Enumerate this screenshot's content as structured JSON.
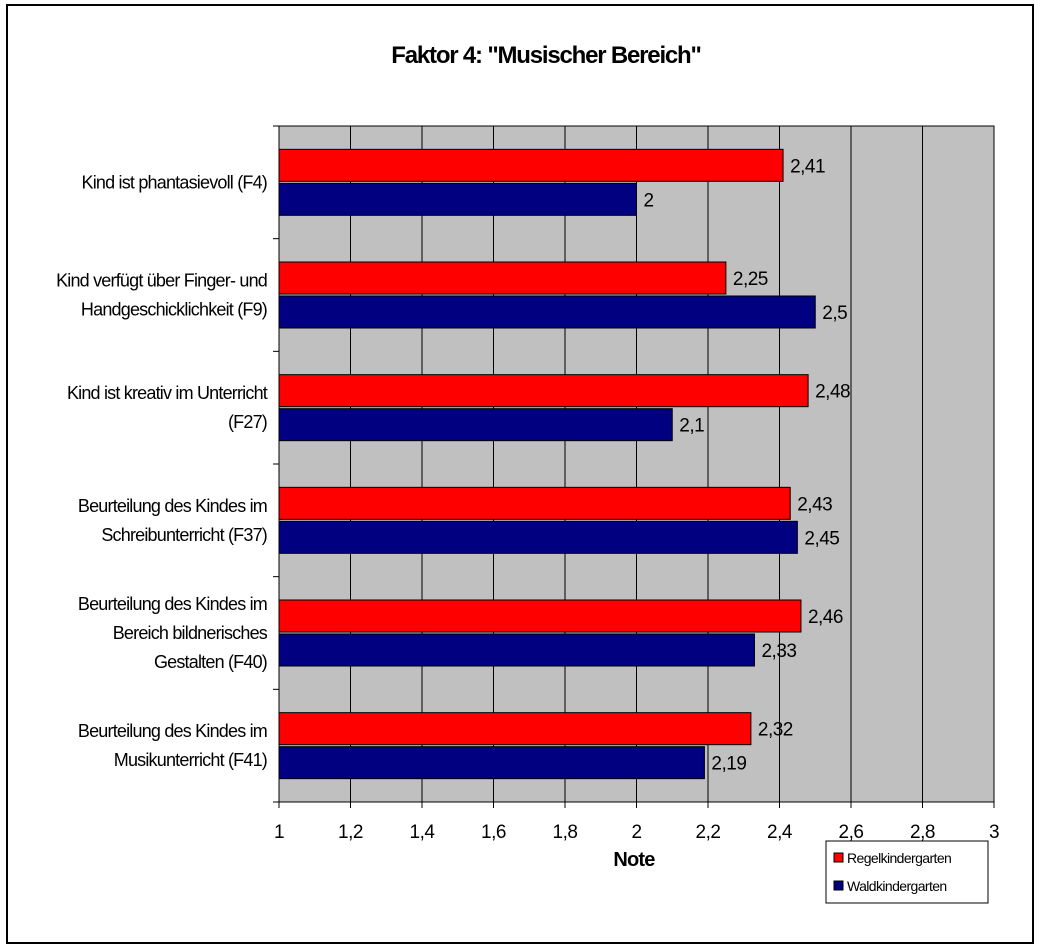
{
  "chart_data": {
    "type": "bar",
    "orientation": "horizontal",
    "title": "Faktor 4: \"Musischer Bereich\"",
    "xlabel": "Note",
    "ylabel": "",
    "xlim": [
      1,
      3
    ],
    "x_ticks": [
      "1",
      "1,2",
      "1,4",
      "1,6",
      "1,8",
      "2",
      "2,2",
      "2,4",
      "2,6",
      "2,8",
      "3"
    ],
    "grid": true,
    "legend_position": "bottom-right",
    "categories": [
      [
        "Kind ist phantasievoll (F4)"
      ],
      [
        "Kind verfügt über Finger- und",
        "Handgeschicklichkeit (F9)"
      ],
      [
        "Kind ist kreativ im Unterricht",
        "(F27)"
      ],
      [
        "Beurteilung des Kindes im",
        "Schreibunterricht (F37)"
      ],
      [
        "Beurteilung des Kindes im",
        "Bereich bildnerisches",
        "Gestalten (F40)"
      ],
      [
        "Beurteilung  des Kindes im",
        "Musikunterricht (F41)"
      ]
    ],
    "series": [
      {
        "name": "Regelkindergarten",
        "color": "#ff0000",
        "values": [
          2.41,
          2.25,
          2.48,
          2.43,
          2.46,
          2.32
        ],
        "labels": [
          "2,41",
          "2,25",
          "2,48",
          "2,43",
          "2,46",
          "2,32"
        ]
      },
      {
        "name": "Waldkindergarten",
        "color": "#000080",
        "values": [
          2.0,
          2.5,
          2.1,
          2.45,
          2.33,
          2.19
        ],
        "labels": [
          "2",
          "2,5",
          "2,1",
          "2,45",
          "2,33",
          "2,19"
        ]
      }
    ],
    "plot_background": "#c0c0c0"
  }
}
